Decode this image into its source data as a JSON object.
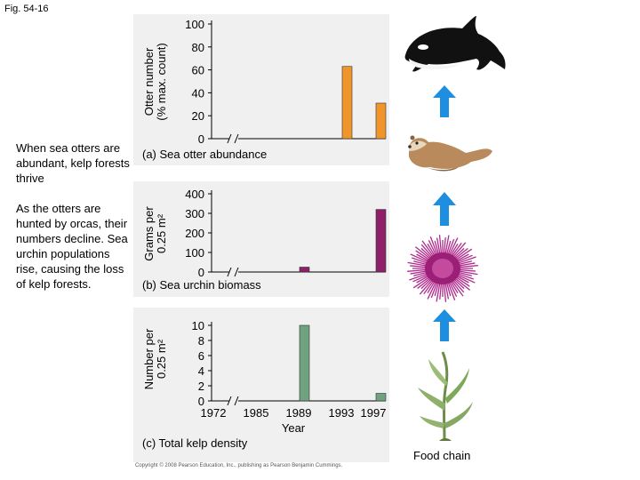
{
  "figure_label": "Fig. 54-16",
  "side_text": {
    "abundant": "When sea otters are abundant, kelp forests thrive",
    "hunted": "As the otters are hunted by orcas, their numbers decline.  Sea urchin populations rise, causing the loss of kelp forests."
  },
  "chart_data": [
    {
      "type": "bar",
      "title": "(a) Sea otter abundance",
      "ylabel": [
        "Otter number",
        "(% max. count)"
      ],
      "ylim": [
        0,
        100
      ],
      "yticks": [
        0,
        20,
        40,
        60,
        80,
        100
      ],
      "categories": [
        "1972",
        "1985",
        "1989",
        "1993",
        "1997"
      ],
      "values": [
        null,
        null,
        null,
        63,
        31
      ],
      "bar_color": "#f0952a"
    },
    {
      "type": "bar",
      "title": "(b) Sea urchin biomass",
      "ylabel": [
        "Grams per",
        "0.25 m²"
      ],
      "ylim": [
        0,
        400
      ],
      "yticks": [
        0,
        100,
        200,
        300,
        400
      ],
      "categories": [
        "1972",
        "1985",
        "1989",
        "1993",
        "1997"
      ],
      "values": [
        null,
        null,
        25,
        null,
        320
      ],
      "bar_color": "#8e1f6a"
    },
    {
      "type": "bar",
      "title": "(c) Total kelp density",
      "ylabel": [
        "Number per",
        "0.25 m²"
      ],
      "ylim": [
        0,
        10
      ],
      "yticks": [
        0,
        2,
        4,
        6,
        8,
        10
      ],
      "categories": [
        "1972",
        "1985",
        "1989",
        "1993",
        "1997"
      ],
      "values": [
        null,
        null,
        10,
        null,
        1
      ],
      "bar_color": "#6fa27f",
      "xlabel": "Year"
    }
  ],
  "food_chain": {
    "label": "Food chain",
    "organisms": [
      "orca-icon",
      "sea-otter-icon",
      "sea-urchin-icon",
      "kelp-icon"
    ],
    "arrow_color": "#1e8fe0"
  },
  "credit": "Copyright © 2008 Pearson Education, Inc., publishing as Pearson Benjamin Cummings."
}
